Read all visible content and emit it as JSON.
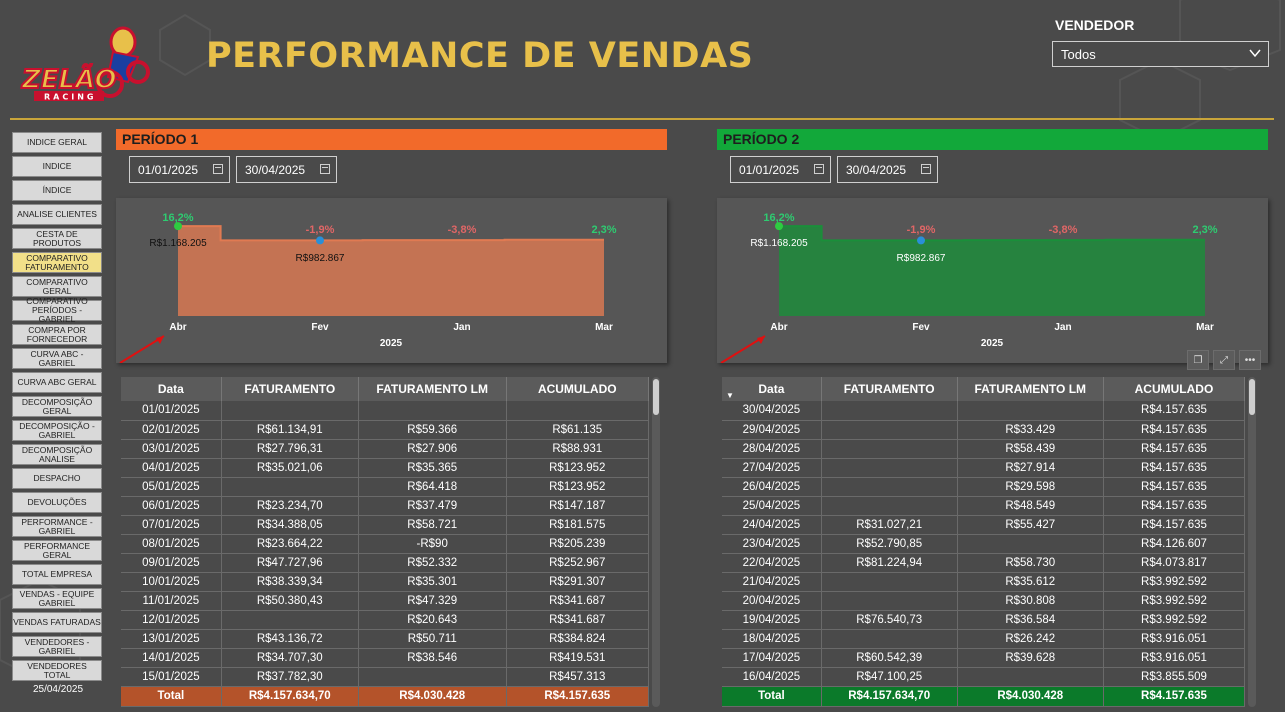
{
  "header": {
    "title": "PERFORMANCE DE VENDAS",
    "logo_text": "ZELÃO",
    "logo_sub": "RACING"
  },
  "filter": {
    "label": "VENDEDOR",
    "value": "Todos"
  },
  "sidebar": {
    "items": [
      "INDICE GERAL",
      "INDICE",
      "ÍNDICE",
      "ANALISE CLIENTES",
      "CESTA DE PRODUTOS",
      "COMPARATIVO FATURAMENTO",
      "COMPARATIVO GERAL",
      "COMPARATIVO PERÍODOS - GABRIEL",
      "COMPRA POR FORNECEDOR",
      "CURVA ABC - GABRIEL",
      "CURVA ABC GERAL",
      "DECOMPOSIÇÃO GERAL",
      "DECOMPOSIÇÃO - GABRIEL",
      "DECOMPOSIÇÃO ANALISE",
      "DESPACHO",
      "DEVOLUÇÕES",
      "PERFORMANCE - GABRIEL",
      "PERFORMANCE GERAL",
      "TOTAL EMPRESA",
      "VENDAS - EQUIPE GABRIEL",
      "VENDAS FATURADAS",
      "VENDEDORES - GABRIEL",
      "VENDEDORES TOTAL"
    ],
    "active_index": 5,
    "date": "25/04/2025"
  },
  "period1": {
    "label": "PERÍODO 1",
    "color": "#f26a2a",
    "start": "01/01/2025",
    "end": "30/04/2025",
    "table": {
      "columns": [
        "Data",
        "FATURAMENTO",
        "FATURAMENTO LM",
        "ACUMULADO"
      ],
      "rows": [
        [
          "01/01/2025",
          "",
          "",
          ""
        ],
        [
          "02/01/2025",
          "R$61.134,91",
          "R$59.366",
          "R$61.135"
        ],
        [
          "03/01/2025",
          "R$27.796,31",
          "R$27.906",
          "R$88.931"
        ],
        [
          "04/01/2025",
          "R$35.021,06",
          "R$35.365",
          "R$123.952"
        ],
        [
          "05/01/2025",
          "",
          "R$64.418",
          "R$123.952"
        ],
        [
          "06/01/2025",
          "R$23.234,70",
          "R$37.479",
          "R$147.187"
        ],
        [
          "07/01/2025",
          "R$34.388,05",
          "R$58.721",
          "R$181.575"
        ],
        [
          "08/01/2025",
          "R$23.664,22",
          "-R$90",
          "R$205.239"
        ],
        [
          "09/01/2025",
          "R$47.727,96",
          "R$52.332",
          "R$252.967"
        ],
        [
          "10/01/2025",
          "R$38.339,34",
          "R$35.301",
          "R$291.307"
        ],
        [
          "11/01/2025",
          "R$50.380,43",
          "R$47.329",
          "R$341.687"
        ],
        [
          "12/01/2025",
          "",
          "R$20.643",
          "R$341.687"
        ],
        [
          "13/01/2025",
          "R$43.136,72",
          "R$50.711",
          "R$384.824"
        ],
        [
          "14/01/2025",
          "R$34.707,30",
          "R$38.546",
          "R$419.531"
        ],
        [
          "15/01/2025",
          "R$37.782,30",
          "",
          "R$457.313"
        ]
      ],
      "total": [
        "Total",
        "R$4.157.634,70",
        "R$4.030.428",
        "R$4.157.635"
      ]
    }
  },
  "period2": {
    "label": "PERÍODO 2",
    "color": "#12a83a",
    "start": "01/01/2025",
    "end": "30/04/2025",
    "table": {
      "columns": [
        "Data",
        "FATURAMENTO",
        "FATURAMENTO LM",
        "ACUMULADO"
      ],
      "rows": [
        [
          "30/04/2025",
          "",
          "",
          "R$4.157.635"
        ],
        [
          "29/04/2025",
          "",
          "R$33.429",
          "R$4.157.635"
        ],
        [
          "28/04/2025",
          "",
          "R$58.439",
          "R$4.157.635"
        ],
        [
          "27/04/2025",
          "",
          "R$27.914",
          "R$4.157.635"
        ],
        [
          "26/04/2025",
          "",
          "R$29.598",
          "R$4.157.635"
        ],
        [
          "25/04/2025",
          "",
          "R$48.549",
          "R$4.157.635"
        ],
        [
          "24/04/2025",
          "R$31.027,21",
          "R$55.427",
          "R$4.157.635"
        ],
        [
          "23/04/2025",
          "R$52.790,85",
          "",
          "R$4.126.607"
        ],
        [
          "22/04/2025",
          "R$81.224,94",
          "R$58.730",
          "R$4.073.817"
        ],
        [
          "21/04/2025",
          "",
          "R$35.612",
          "R$3.992.592"
        ],
        [
          "20/04/2025",
          "",
          "R$30.808",
          "R$3.992.592"
        ],
        [
          "19/04/2025",
          "R$76.540,73",
          "R$36.584",
          "R$3.992.592"
        ],
        [
          "18/04/2025",
          "",
          "R$26.242",
          "R$3.916.051"
        ],
        [
          "17/04/2025",
          "R$60.542,39",
          "R$39.628",
          "R$3.916.051"
        ],
        [
          "16/04/2025",
          "R$47.100,25",
          "",
          "R$3.855.509"
        ]
      ],
      "total": [
        "Total",
        "R$4.157.634,70",
        "R$4.030.428",
        "R$4.157.635"
      ]
    }
  },
  "chart_data": [
    {
      "type": "area",
      "categories": [
        "Abr",
        "Fev",
        "Jan",
        "Mar"
      ],
      "xlabel": "2025",
      "values": [
        1168205,
        982867,
        986000,
        992000
      ],
      "pct_labels": [
        "16,2%",
        "-1,9%",
        "-3,8%",
        "2,3%"
      ],
      "value_labels": [
        "R$1.168.205",
        "R$982.867",
        "",
        ""
      ],
      "ylim": [
        0,
        1300000
      ],
      "color": "#e07a52"
    },
    {
      "type": "area",
      "categories": [
        "Abr",
        "Fev",
        "Jan",
        "Mar"
      ],
      "xlabel": "2025",
      "values": [
        1168205,
        982867,
        986000,
        992000
      ],
      "pct_labels": [
        "16,2%",
        "-1,9%",
        "-3,8%",
        "2,3%"
      ],
      "value_labels": [
        "R$1.168.205",
        "R$982.867",
        "",
        ""
      ],
      "ylim": [
        0,
        1300000
      ],
      "color": "#1a8f3a"
    }
  ],
  "colors": {
    "positive": "#2ecc71",
    "negative": "#e06666",
    "gold": "#e8c04a"
  }
}
